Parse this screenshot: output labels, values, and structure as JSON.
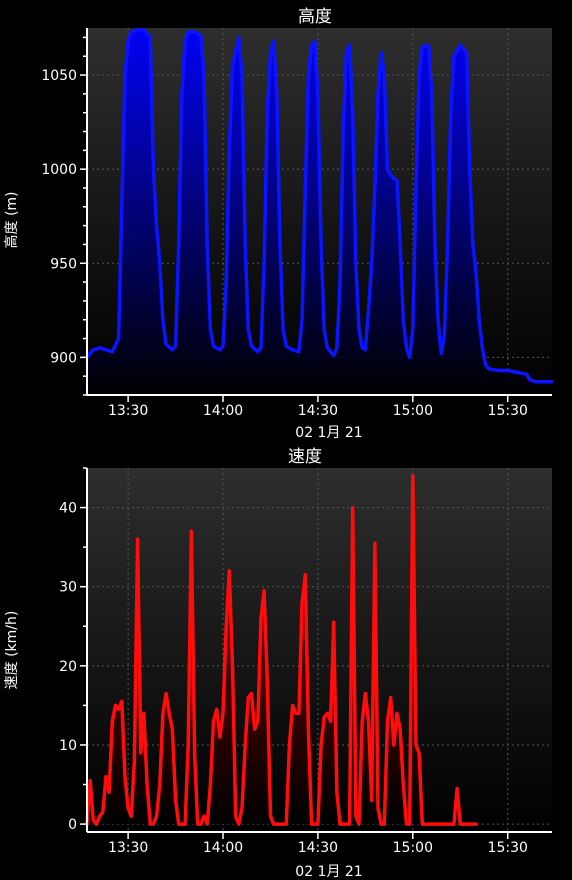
{
  "chart_data": [
    {
      "type": "area",
      "title": "高度",
      "ylabel": "高度 (m)",
      "xlabel": "02 1月 21",
      "color": "#0a14ff",
      "xlim": [
        "13:17",
        "15:44"
      ],
      "ylim": [
        880,
        1075
      ],
      "yticks": [
        900,
        950,
        1000,
        1050
      ],
      "xticks": [
        "13:30",
        "14:00",
        "14:30",
        "15:00",
        "15:30"
      ],
      "grid": true,
      "points": [
        [
          "13:17",
          900
        ],
        [
          "13:19",
          904
        ],
        [
          "13:21",
          905
        ],
        [
          "13:23",
          904
        ],
        [
          "13:25",
          903
        ],
        [
          "13:27",
          910
        ],
        [
          "13:28",
          980
        ],
        [
          "13:29",
          1050
        ],
        [
          "13:30",
          1068
        ],
        [
          "13:31",
          1073
        ],
        [
          "13:33",
          1074
        ],
        [
          "13:35",
          1074
        ],
        [
          "13:37",
          1070
        ],
        [
          "13:38",
          1000
        ],
        [
          "13:39",
          970
        ],
        [
          "13:40",
          950
        ],
        [
          "13:41",
          920
        ],
        [
          "13:42",
          907
        ],
        [
          "13:44",
          904
        ],
        [
          "13:45",
          906
        ],
        [
          "13:46",
          960
        ],
        [
          "13:47",
          1040
        ],
        [
          "13:48",
          1068
        ],
        [
          "13:49",
          1073
        ],
        [
          "13:51",
          1073
        ],
        [
          "13:53",
          1071
        ],
        [
          "13:54",
          1050
        ],
        [
          "13:55",
          960
        ],
        [
          "13:56",
          915
        ],
        [
          "13:57",
          906
        ],
        [
          "13:59",
          904
        ],
        [
          "14:00",
          906
        ],
        [
          "14:01",
          940
        ],
        [
          "14:02",
          1010
        ],
        [
          "14:03",
          1055
        ],
        [
          "14:05",
          1070
        ],
        [
          "14:06",
          1050
        ],
        [
          "14:07",
          960
        ],
        [
          "14:08",
          915
        ],
        [
          "14:09",
          906
        ],
        [
          "14:11",
          903
        ],
        [
          "14:12",
          905
        ],
        [
          "14:13",
          950
        ],
        [
          "14:14",
          1030
        ],
        [
          "14:15",
          1062
        ],
        [
          "14:16",
          1068
        ],
        [
          "14:17",
          1040
        ],
        [
          "14:18",
          960
        ],
        [
          "14:19",
          915
        ],
        [
          "14:20",
          906
        ],
        [
          "14:22",
          904
        ],
        [
          "14:24",
          903
        ],
        [
          "14:25",
          920
        ],
        [
          "14:26",
          990
        ],
        [
          "14:27",
          1050
        ],
        [
          "14:28",
          1066
        ],
        [
          "14:29",
          1068
        ],
        [
          "14:30",
          1040
        ],
        [
          "14:31",
          960
        ],
        [
          "14:32",
          915
        ],
        [
          "14:33",
          905
        ],
        [
          "14:35",
          901
        ],
        [
          "14:36",
          905
        ],
        [
          "14:37",
          940
        ],
        [
          "14:38",
          1020
        ],
        [
          "14:39",
          1062
        ],
        [
          "14:40",
          1066
        ],
        [
          "14:41",
          1030
        ],
        [
          "14:42",
          950
        ],
        [
          "14:43",
          915
        ],
        [
          "14:44",
          905
        ],
        [
          "14:45",
          904
        ],
        [
          "14:46",
          925
        ],
        [
          "14:47",
          950
        ],
        [
          "14:48",
          990
        ],
        [
          "14:49",
          1040
        ],
        [
          "14:50",
          1062
        ],
        [
          "14:51",
          1050
        ],
        [
          "14:52",
          1000
        ],
        [
          "14:53",
          997
        ],
        [
          "14:54",
          995
        ],
        [
          "14:55",
          994
        ],
        [
          "14:56",
          960
        ],
        [
          "14:57",
          920
        ],
        [
          "14:58",
          905
        ],
        [
          "14:59",
          900
        ],
        [
          "15:00",
          915
        ],
        [
          "15:01",
          990
        ],
        [
          "15:02",
          1050
        ],
        [
          "15:03",
          1065
        ],
        [
          "15:05",
          1066
        ],
        [
          "15:06",
          1040
        ],
        [
          "15:07",
          960
        ],
        [
          "15:08",
          920
        ],
        [
          "15:09",
          902
        ],
        [
          "15:10",
          912
        ],
        [
          "15:11",
          960
        ],
        [
          "15:12",
          1030
        ],
        [
          "15:13",
          1060
        ],
        [
          "15:15",
          1066
        ],
        [
          "15:17",
          1062
        ],
        [
          "15:18",
          1000
        ],
        [
          "15:19",
          960
        ],
        [
          "15:20",
          945
        ],
        [
          "15:21",
          920
        ],
        [
          "15:22",
          905
        ],
        [
          "15:23",
          896
        ],
        [
          "15:24",
          894
        ],
        [
          "15:27",
          893
        ],
        [
          "15:30",
          893
        ],
        [
          "15:33",
          892
        ],
        [
          "15:36",
          891
        ],
        [
          "15:37",
          888
        ],
        [
          "15:39",
          887
        ],
        [
          "15:41",
          887
        ],
        [
          "15:44",
          887
        ]
      ]
    },
    {
      "type": "area",
      "title": "速度",
      "ylabel": "速度 (km/h)",
      "xlabel": "02 1月 21",
      "color": "#ff0d0d",
      "xlim": [
        "13:17",
        "15:44"
      ],
      "ylim": [
        -1,
        45
      ],
      "yticks": [
        0,
        10,
        20,
        30,
        40
      ],
      "xticks": [
        "13:30",
        "14:00",
        "14:30",
        "15:00",
        "15:30"
      ],
      "grid": true,
      "points": [
        [
          "13:17",
          0
        ],
        [
          "13:18",
          5.5
        ],
        [
          "13:19",
          0.5
        ],
        [
          "13:20",
          0
        ],
        [
          "13:21",
          1
        ],
        [
          "13:22",
          1.5
        ],
        [
          "13:23",
          6
        ],
        [
          "13:24",
          4
        ],
        [
          "13:25",
          13
        ],
        [
          "13:26",
          15
        ],
        [
          "13:27",
          14.5
        ],
        [
          "13:28",
          15.5
        ],
        [
          "13:29",
          6
        ],
        [
          "13:30",
          2
        ],
        [
          "13:31",
          1
        ],
        [
          "13:32",
          8
        ],
        [
          "13:33",
          36
        ],
        [
          "13:34",
          9
        ],
        [
          "13:35",
          14
        ],
        [
          "13:36",
          5
        ],
        [
          "13:37",
          0
        ],
        [
          "13:38",
          0
        ],
        [
          "13:39",
          1
        ],
        [
          "13:40",
          5
        ],
        [
          "13:41",
          14
        ],
        [
          "13:42",
          16.5
        ],
        [
          "13:43",
          14
        ],
        [
          "13:44",
          12
        ],
        [
          "13:45",
          3
        ],
        [
          "13:46",
          0
        ],
        [
          "13:47",
          0
        ],
        [
          "13:48",
          0
        ],
        [
          "13:49",
          10
        ],
        [
          "13:50",
          37
        ],
        [
          "13:51",
          9
        ],
        [
          "13:52",
          0
        ],
        [
          "13:53",
          0
        ],
        [
          "13:54",
          1
        ],
        [
          "13:55",
          0
        ],
        [
          "13:56",
          5
        ],
        [
          "13:57",
          13
        ],
        [
          "13:58",
          14.5
        ],
        [
          "13:59",
          11
        ],
        [
          "14:00",
          14
        ],
        [
          "14:01",
          25
        ],
        [
          "14:02",
          32
        ],
        [
          "14:03",
          20
        ],
        [
          "14:04",
          1
        ],
        [
          "14:05",
          0
        ],
        [
          "14:06",
          2
        ],
        [
          "14:07",
          10
        ],
        [
          "14:08",
          16
        ],
        [
          "14:09",
          16.5
        ],
        [
          "14:10",
          12
        ],
        [
          "14:11",
          13
        ],
        [
          "14:12",
          26
        ],
        [
          "14:13",
          29.5
        ],
        [
          "14:14",
          18
        ],
        [
          "14:15",
          1
        ],
        [
          "14:16",
          0
        ],
        [
          "14:17",
          0
        ],
        [
          "14:18",
          0
        ],
        [
          "14:19",
          0
        ],
        [
          "14:20",
          0
        ],
        [
          "14:21",
          10
        ],
        [
          "14:22",
          15
        ],
        [
          "14:23",
          14
        ],
        [
          "14:24",
          14
        ],
        [
          "14:25",
          28
        ],
        [
          "14:26",
          31.5
        ],
        [
          "14:27",
          12
        ],
        [
          "14:28",
          0
        ],
        [
          "14:29",
          0
        ],
        [
          "14:30",
          0
        ],
        [
          "14:31",
          10
        ],
        [
          "14:32",
          13.5
        ],
        [
          "14:33",
          14
        ],
        [
          "14:34",
          13
        ],
        [
          "14:35",
          25.5
        ],
        [
          "14:36",
          4
        ],
        [
          "14:37",
          0
        ],
        [
          "14:38",
          0
        ],
        [
          "14:39",
          0
        ],
        [
          "14:40",
          0
        ],
        [
          "14:41",
          40
        ],
        [
          "14:42",
          1
        ],
        [
          "14:43",
          0
        ],
        [
          "14:44",
          13
        ],
        [
          "14:45",
          16.5
        ],
        [
          "14:46",
          13
        ],
        [
          "14:47",
          3
        ],
        [
          "14:48",
          35.5
        ],
        [
          "14:49",
          2
        ],
        [
          "14:50",
          0
        ],
        [
          "14:51",
          0
        ],
        [
          "14:52",
          13
        ],
        [
          "14:53",
          16
        ],
        [
          "14:54",
          10
        ],
        [
          "14:55",
          14
        ],
        [
          "14:56",
          12
        ],
        [
          "14:57",
          5
        ],
        [
          "14:58",
          0
        ],
        [
          "14:59",
          0
        ],
        [
          "15:00",
          44
        ],
        [
          "15:01",
          10
        ],
        [
          "15:02",
          9
        ],
        [
          "15:03",
          0
        ],
        [
          "15:04",
          0
        ],
        [
          "15:06",
          0
        ],
        [
          "15:08",
          0
        ],
        [
          "15:10",
          0
        ],
        [
          "15:12",
          0
        ],
        [
          "15:13",
          0
        ],
        [
          "15:14",
          4.5
        ],
        [
          "15:15",
          0
        ],
        [
          "15:16",
          0
        ],
        [
          "15:18",
          0
        ],
        [
          "15:20",
          0
        ]
      ]
    }
  ]
}
